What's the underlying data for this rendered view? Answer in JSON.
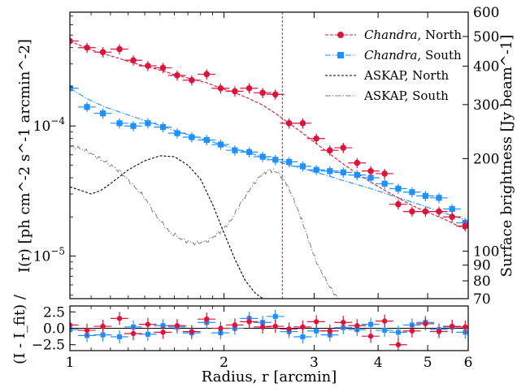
{
  "chart_data": {
    "type": "scatter",
    "xlabel": "Radius, r [arcmin]",
    "ylabel_main": "I(r) [ph cm^-2 s^-1 arcmin^-2]",
    "ylabel_right": "Surface brightness [Jy beam^-1]",
    "ylabel_resid": "(I - I_fit) /",
    "xscale": "log",
    "xlim": [
      1,
      6
    ],
    "xticks": [
      "1",
      "2",
      "3",
      "4",
      "5",
      "6"
    ],
    "yscale_main": "log",
    "ylim_main": [
      4.7e-06,
      0.00075
    ],
    "yticks_main": [
      "10^-4",
      "10^-5"
    ],
    "yticks_right": [
      "600",
      "500",
      "400",
      "300",
      "200",
      "100",
      "90",
      "80",
      "70"
    ],
    "ylim_right": [
      70,
      600
    ],
    "ylim_resid": [
      -3.4,
      3.4
    ],
    "yticks_resid": [
      "2.5",
      "0.0",
      "-2.5"
    ],
    "vline_x": 2.6,
    "legend_position": "top-right",
    "legend": [
      {
        "label_italic": "Chandra",
        "label_rest": ", North"
      },
      {
        "label_italic": "Chandra",
        "label_rest": ", South"
      },
      {
        "label_italic": "",
        "label_rest": "ASKAP, North"
      },
      {
        "label_italic": "",
        "label_rest": "ASKAP, South"
      }
    ],
    "colors": {
      "north": "#dc143c",
      "south": "#1e90ff",
      "askap_north": "#000000",
      "askap_south": "#808080",
      "vline": "#c2185b"
    },
    "series": [
      {
        "key": "north",
        "x": [
          1.0,
          1.08,
          1.16,
          1.25,
          1.33,
          1.42,
          1.52,
          1.62,
          1.73,
          1.85,
          1.97,
          2.1,
          2.24,
          2.38,
          2.52,
          2.68,
          2.85,
          3.03,
          3.22,
          3.42,
          3.64,
          3.87,
          4.12,
          4.38,
          4.66,
          4.95,
          5.26,
          5.58,
          5.92
        ],
        "y": [
          0.00045,
          0.0004,
          0.00037,
          0.00039,
          0.00032,
          0.00029,
          0.00028,
          0.000245,
          0.000225,
          0.00025,
          0.000195,
          0.000185,
          0.000195,
          0.00018,
          0.000175,
          0.000105,
          0.000105,
          8e-05,
          6.5e-05,
          6.8e-05,
          5.2e-05,
          4.5e-05,
          4.3e-05,
          2.5e-05,
          2.2e-05,
          2.2e-05,
          2.2e-05,
          2e-05,
          1.7e-05
        ],
        "fit": [
          0.00045,
          0.000395,
          0.00036,
          0.00033,
          0.000305,
          0.000285,
          0.000265,
          0.000245,
          0.00023,
          0.000215,
          0.000195,
          0.00018,
          0.000162,
          0.000145,
          0.000125,
          0.000105,
          8.8e-05,
          7.3e-05,
          6.1e-05,
          5.1e-05,
          4.3e-05,
          3.7e-05,
          3.2e-05,
          2.8e-05,
          2.45e-05,
          2.2e-05,
          2e-05,
          1.8e-05,
          1.6e-05
        ],
        "resid": [
          0.5,
          -0.3,
          0.3,
          1.5,
          -0.8,
          0.6,
          -0.6,
          0.4,
          -0.5,
          1.4,
          0.0,
          0.5,
          1.0,
          0.2,
          0.3,
          -0.1,
          0.2,
          1.0,
          -0.4,
          0.9,
          0.4,
          -1.2,
          1.1,
          -2.5,
          -0.4,
          0.7,
          -0.5,
          0.3,
          0.2
        ],
        "xerr_frac": 0.04,
        "yerr_frac": 0.09
      },
      {
        "key": "south",
        "x": [
          1.0,
          1.08,
          1.16,
          1.25,
          1.33,
          1.42,
          1.52,
          1.62,
          1.73,
          1.85,
          1.97,
          2.1,
          2.24,
          2.38,
          2.52,
          2.68,
          2.85,
          3.03,
          3.22,
          3.42,
          3.64,
          3.87,
          4.12,
          4.38,
          4.66,
          4.95,
          5.26,
          5.58,
          5.92
        ],
        "y": [
          0.000195,
          0.00014,
          0.000125,
          0.000105,
          0.0001,
          0.000105,
          9.8e-05,
          8.8e-05,
          8.2e-05,
          7.8e-05,
          7.2e-05,
          6.5e-05,
          6.3e-05,
          5.8e-05,
          5.5e-05,
          5.3e-05,
          4.9e-05,
          4.6e-05,
          4.5e-05,
          4.4e-05,
          4.2e-05,
          4e-05,
          3.6e-05,
          3.3e-05,
          3.1e-05,
          2.9e-05,
          2.8e-05,
          2.3e-05,
          1.8e-05
        ],
        "fit": [
          0.000195,
          0.000162,
          0.000142,
          0.000128,
          0.000118,
          0.000108,
          9.9e-05,
          9.1e-05,
          8.4e-05,
          7.8e-05,
          7.2e-05,
          6.7e-05,
          6.2e-05,
          5.8e-05,
          5.4e-05,
          5e-05,
          4.7e-05,
          4.4e-05,
          4.1e-05,
          3.8e-05,
          3.55e-05,
          3.3e-05,
          3.05e-05,
          2.8e-05,
          2.6e-05,
          2.4e-05,
          2.2e-05,
          2.05e-05,
          1.9e-05
        ],
        "resid": [
          -0.2,
          -1.1,
          -1.0,
          -1.3,
          0.2,
          -0.9,
          0.4,
          0.2,
          -0.7,
          0.9,
          -0.7,
          0.0,
          1.5,
          0.9,
          1.8,
          -0.5,
          -1.3,
          -0.4,
          -1.0,
          0.1,
          -0.2,
          0.6,
          -0.3,
          -0.6,
          0.5,
          0.9,
          -0.2,
          0.2,
          -0.6
        ],
        "xerr_frac": 0.04,
        "yerr_frac": 0.09
      },
      {
        "key": "askap_north",
        "x": [
          1.0,
          1.05,
          1.1,
          1.15,
          1.2,
          1.3,
          1.4,
          1.5,
          1.6,
          1.7,
          1.8,
          1.9,
          2.0,
          2.1,
          2.2,
          2.3,
          2.4
        ],
        "y": [
          3.4e-05,
          3.2e-05,
          3e-05,
          3.2e-05,
          3.6e-05,
          4.6e-05,
          5.4e-05,
          5.9e-05,
          5.8e-05,
          5e-05,
          3.9e-05,
          2.5e-05,
          1.5e-05,
          9.5e-06,
          6.5e-06,
          5.2e-06,
          4.6e-06
        ]
      },
      {
        "key": "askap_south",
        "x": [
          1.0,
          1.06,
          1.12,
          1.18,
          1.25,
          1.32,
          1.4,
          1.48,
          1.56,
          1.65,
          1.75,
          1.85,
          1.95,
          2.05,
          2.15,
          2.25,
          2.35,
          2.45,
          2.55,
          2.65,
          2.75,
          2.85,
          2.95,
          3.05,
          3.2,
          3.35
        ],
        "y": [
          7e-05,
          6.6e-05,
          5.9e-05,
          5.2e-05,
          4.5e-05,
          3.6e-05,
          2.8e-05,
          2e-05,
          1.55e-05,
          1.35e-05,
          1.25e-05,
          1.3e-05,
          1.5e-05,
          1.8e-05,
          2.5e-05,
          3.3e-05,
          4.1e-05,
          4.6e-05,
          4.4e-05,
          3.6e-05,
          2.6e-05,
          1.8e-05,
          1.2e-05,
          8.5e-06,
          6e-06,
          4.6e-06
        ]
      }
    ]
  }
}
